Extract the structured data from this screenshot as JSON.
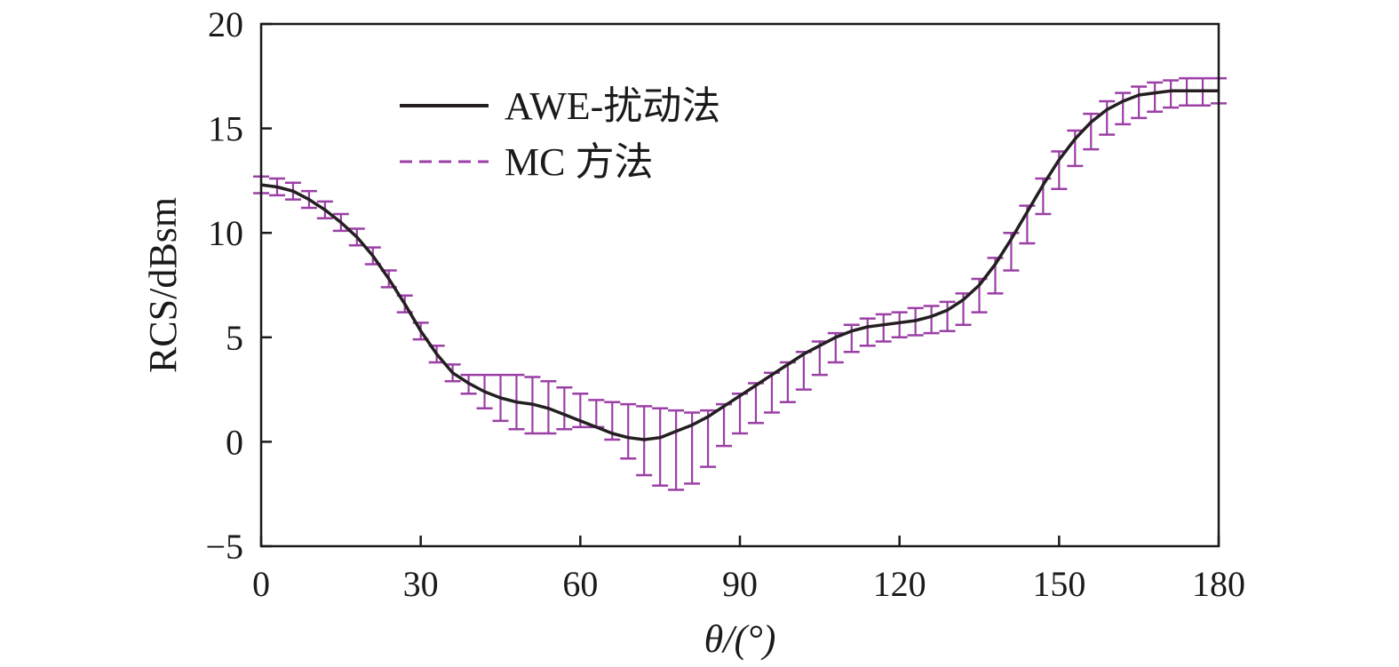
{
  "chart_data": {
    "type": "line",
    "xlabel": "θ/(°)",
    "ylabel": "RCS/dBsm",
    "xlim": [
      0,
      180
    ],
    "ylim": [
      -5,
      20
    ],
    "xticks": [
      "0",
      "30",
      "60",
      "90",
      "120",
      "150",
      "180"
    ],
    "yticks": [
      "−5",
      "0",
      "5",
      "10",
      "15",
      "20"
    ],
    "grid": false,
    "legend_position": "top-left",
    "series": [
      {
        "name": "AWE-扰动法",
        "style": "solid",
        "color": "#231f20",
        "x": [
          0,
          3,
          6,
          9,
          12,
          15,
          18,
          21,
          24,
          27,
          30,
          33,
          36,
          39,
          42,
          45,
          48,
          51,
          54,
          57,
          60,
          63,
          66,
          69,
          72,
          75,
          78,
          81,
          84,
          87,
          90,
          93,
          96,
          99,
          102,
          105,
          108,
          111,
          114,
          117,
          120,
          123,
          126,
          129,
          132,
          135,
          138,
          141,
          144,
          147,
          150,
          153,
          156,
          159,
          162,
          165,
          168,
          171,
          174,
          177,
          180
        ],
        "y": [
          12.3,
          12.2,
          12.0,
          11.6,
          11.1,
          10.5,
          9.8,
          8.9,
          7.8,
          6.6,
          5.3,
          4.2,
          3.3,
          2.8,
          2.4,
          2.1,
          1.9,
          1.8,
          1.6,
          1.3,
          1.0,
          0.7,
          0.4,
          0.2,
          0.1,
          0.2,
          0.5,
          0.8,
          1.2,
          1.7,
          2.2,
          2.7,
          3.2,
          3.7,
          4.2,
          4.6,
          5.0,
          5.3,
          5.5,
          5.6,
          5.7,
          5.8,
          6.0,
          6.3,
          6.8,
          7.5,
          8.5,
          9.7,
          11.0,
          12.3,
          13.5,
          14.5,
          15.3,
          15.9,
          16.3,
          16.6,
          16.7,
          16.8,
          16.8,
          16.8,
          16.8
        ]
      },
      {
        "name": "MC 方法",
        "style": "dashed",
        "color": "#9b3fa6",
        "x": [
          0,
          3,
          6,
          9,
          12,
          15,
          18,
          21,
          24,
          27,
          30,
          33,
          36,
          39,
          42,
          45,
          48,
          51,
          54,
          57,
          60,
          63,
          66,
          69,
          72,
          75,
          78,
          81,
          84,
          87,
          90,
          93,
          96,
          99,
          102,
          105,
          108,
          111,
          114,
          117,
          120,
          123,
          126,
          129,
          132,
          135,
          138,
          141,
          144,
          147,
          150,
          153,
          156,
          159,
          162,
          165,
          168,
          171,
          174,
          177,
          180
        ],
        "y": [
          12.3,
          12.2,
          12.0,
          11.6,
          11.1,
          10.5,
          9.8,
          8.9,
          7.8,
          6.6,
          5.3,
          4.2,
          3.3,
          2.8,
          2.4,
          2.1,
          1.9,
          1.8,
          1.6,
          1.3,
          1.0,
          0.7,
          0.4,
          0.2,
          0.1,
          0.2,
          0.5,
          0.8,
          1.2,
          1.7,
          2.2,
          2.7,
          3.2,
          3.7,
          4.2,
          4.6,
          5.0,
          5.3,
          5.5,
          5.6,
          5.7,
          5.8,
          6.0,
          6.3,
          6.8,
          7.5,
          8.5,
          9.7,
          11.0,
          12.3,
          13.5,
          14.5,
          15.3,
          15.9,
          16.3,
          16.6,
          16.7,
          16.8,
          16.8,
          16.8,
          16.8
        ],
        "error_upper": [
          12.7,
          12.6,
          12.4,
          12.0,
          11.5,
          10.9,
          10.2,
          9.3,
          8.2,
          7.0,
          5.7,
          4.6,
          3.7,
          3.2,
          3.2,
          3.2,
          3.2,
          3.1,
          2.9,
          2.6,
          2.3,
          2.0,
          1.9,
          1.8,
          1.7,
          1.6,
          1.5,
          1.4,
          1.5,
          1.8,
          2.3,
          2.8,
          3.3,
          3.8,
          4.3,
          4.8,
          5.2,
          5.6,
          5.9,
          6.1,
          6.2,
          6.4,
          6.5,
          6.7,
          7.1,
          7.8,
          8.8,
          10.0,
          11.3,
          12.6,
          13.9,
          14.9,
          15.7,
          16.3,
          16.7,
          17.0,
          17.2,
          17.3,
          17.4,
          17.4,
          17.4
        ],
        "error_lower": [
          11.9,
          11.8,
          11.6,
          11.2,
          10.7,
          10.1,
          9.4,
          8.5,
          7.4,
          6.2,
          4.9,
          3.8,
          2.9,
          2.3,
          1.6,
          1.0,
          0.6,
          0.4,
          0.4,
          0.6,
          0.7,
          0.7,
          0.1,
          -0.8,
          -1.6,
          -2.1,
          -2.3,
          -2.0,
          -1.2,
          -0.2,
          0.4,
          0.9,
          1.4,
          1.9,
          2.5,
          3.2,
          3.8,
          4.3,
          4.6,
          4.8,
          5.0,
          5.1,
          5.2,
          5.3,
          5.6,
          6.2,
          7.1,
          8.2,
          9.5,
          10.9,
          12.1,
          13.2,
          14.0,
          14.7,
          15.2,
          15.5,
          15.8,
          16.0,
          16.1,
          16.1,
          16.2
        ]
      }
    ]
  }
}
